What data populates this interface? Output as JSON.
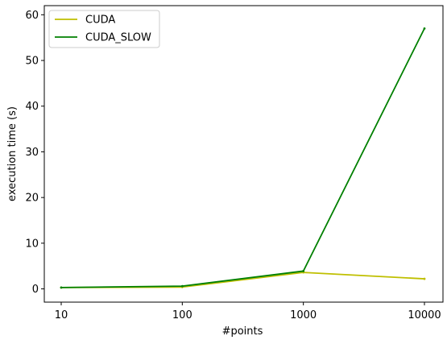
{
  "chart_data": {
    "type": "line",
    "title": "",
    "xlabel": "#points",
    "ylabel": "execution time (s)",
    "x_scale": "log",
    "x": [
      10,
      100,
      1000,
      10000
    ],
    "x_tick_labels": [
      "10",
      "100",
      "1000",
      "10000"
    ],
    "y_ticks": [
      0,
      10,
      20,
      30,
      40,
      50,
      60
    ],
    "y_tick_labels": [
      "0",
      "10",
      "20",
      "30",
      "40",
      "50",
      "60"
    ],
    "ylim": [
      -2.9,
      62.0
    ],
    "grid": false,
    "legend_position": "top-left",
    "series": [
      {
        "name": "CUDA",
        "color": "#bfbf00",
        "values": [
          0.3,
          0.4,
          3.6,
          2.2
        ]
      },
      {
        "name": "CUDA_SLOW",
        "color": "#008000",
        "values": [
          0.3,
          0.6,
          3.9,
          57.0
        ]
      }
    ]
  }
}
